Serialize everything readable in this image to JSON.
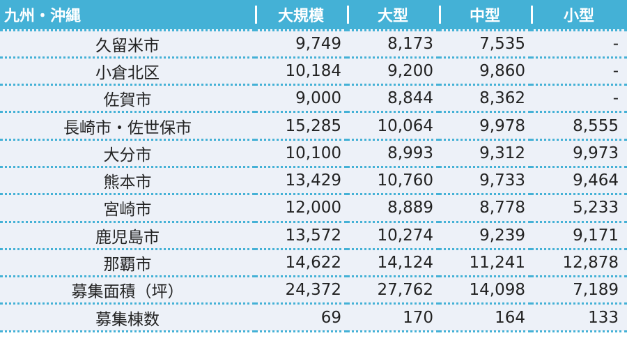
{
  "header": {
    "region": "九州・沖縄",
    "columns": [
      "大規模",
      "大型",
      "中型",
      "小型"
    ]
  },
  "rows": [
    {
      "label": "久留米市",
      "values": [
        "9,749",
        "8,173",
        "7,535",
        "-"
      ]
    },
    {
      "label": "小倉北区",
      "values": [
        "10,184",
        "9,200",
        "9,860",
        "-"
      ]
    },
    {
      "label": "佐賀市",
      "values": [
        "9,000",
        "8,844",
        "8,362",
        "-"
      ]
    },
    {
      "label": "長崎市・佐世保市",
      "values": [
        "15,285",
        "10,064",
        "9,978",
        "8,555"
      ]
    },
    {
      "label": "大分市",
      "values": [
        "10,100",
        "8,993",
        "9,312",
        "9,973"
      ]
    },
    {
      "label": "熊本市",
      "values": [
        "13,429",
        "10,760",
        "9,733",
        "9,464"
      ]
    },
    {
      "label": "宮崎市",
      "values": [
        "12,000",
        "8,889",
        "8,778",
        "5,233"
      ]
    },
    {
      "label": "鹿児島市",
      "values": [
        "13,572",
        "10,274",
        "9,239",
        "9,171"
      ]
    },
    {
      "label": "那覇市",
      "values": [
        "14,622",
        "14,124",
        "11,241",
        "12,878"
      ]
    },
    {
      "label": "募集面積（坪）",
      "values": [
        "24,372",
        "27,762",
        "14,098",
        "7,189"
      ]
    },
    {
      "label": "募集棟数",
      "values": [
        "69",
        "170",
        "164",
        "133"
      ]
    }
  ],
  "colors": {
    "header_bg": "#44b1d6",
    "row_bg": "#edf1f8",
    "divider": "#44b1d6"
  }
}
